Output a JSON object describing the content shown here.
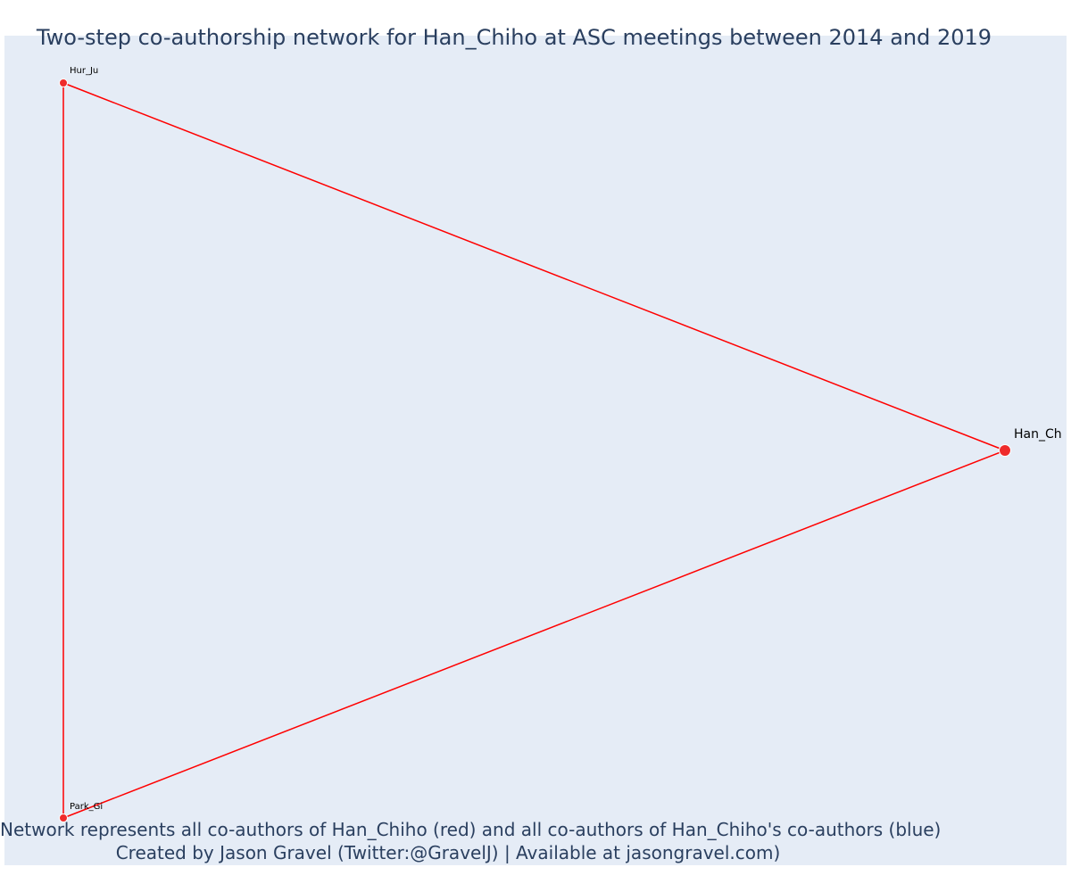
{
  "title": "Two-step co-authorship network for Han_Chiho at ASC meetings between 2014 and 2019",
  "caption": {
    "line1": "Network represents all co-authors of Han_Chiho (red) and all co-authors of Han_Chiho's co-authors (blue)",
    "line2": "Created by Jason Gravel (Twitter:@GravelJ) | Available at jasongravel.com)"
  },
  "colors": {
    "plot_background": "#e5ecf6",
    "edge": "#ff0000",
    "node_red": "#ef2b2b",
    "text": "#2a3f5f"
  },
  "network": {
    "nodes": [
      {
        "id": "Hur_Ju",
        "label": "Hur_Ju",
        "group": "co-author",
        "color": "red"
      },
      {
        "id": "Park_Gi",
        "label": "Park_Gi",
        "group": "co-author",
        "color": "red"
      },
      {
        "id": "Han_Ch",
        "label": "Han_Ch",
        "group": "focal",
        "color": "red"
      }
    ],
    "edges": [
      {
        "source": "Hur_Ju",
        "target": "Han_Ch"
      },
      {
        "source": "Hur_Ju",
        "target": "Park_Gi"
      },
      {
        "source": "Park_Gi",
        "target": "Han_Ch"
      }
    ]
  }
}
